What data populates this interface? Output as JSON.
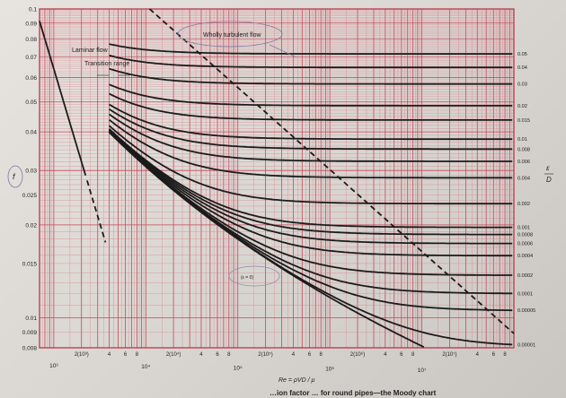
{
  "chart_data": {
    "type": "line",
    "xscale": "log",
    "yscale": "log",
    "xlim": [
      700,
      100000000
    ],
    "ylim": [
      0.008,
      0.1
    ],
    "grid": true,
    "xlabel": "Re = ρVD / μ",
    "ylabel": "f",
    "right_label_top": "ε",
    "right_label_bottom": "D",
    "annotations": {
      "laminar": "Laminar flow",
      "transition": "Transition range",
      "wholly_turbulent": "Wholly turbulent flow",
      "small_note": "(ε = 0)"
    },
    "y_ticks": [
      {
        "v": 0.1,
        "t": "0.1"
      },
      {
        "v": 0.09,
        "t": "0.09"
      },
      {
        "v": 0.08,
        "t": "0.08"
      },
      {
        "v": 0.07,
        "t": "0.07"
      },
      {
        "v": 0.06,
        "t": "0.06"
      },
      {
        "v": 0.05,
        "t": "0.05"
      },
      {
        "v": 0.04,
        "t": "0.04"
      },
      {
        "v": 0.03,
        "t": "0.03"
      },
      {
        "v": 0.025,
        "t": "0.025"
      },
      {
        "v": 0.02,
        "t": "0.02"
      },
      {
        "v": 0.015,
        "t": "0.015"
      },
      {
        "v": 0.01,
        "t": "0.01"
      },
      {
        "v": 0.009,
        "t": "0.009"
      },
      {
        "v": 0.008,
        "t": "0.008"
      }
    ],
    "x_ticks_small": [
      {
        "v": 2000,
        "t": "2(10³)"
      },
      {
        "v": 4000,
        "t": "4"
      },
      {
        "v": 6000,
        "t": "6"
      },
      {
        "v": 8000,
        "t": "8"
      },
      {
        "v": 20000,
        "t": "2(10⁴)"
      },
      {
        "v": 40000,
        "t": "4"
      },
      {
        "v": 60000,
        "t": "6"
      },
      {
        "v": 80000,
        "t": "8"
      },
      {
        "v": 200000,
        "t": "2(10⁵)"
      },
      {
        "v": 400000,
        "t": "4"
      },
      {
        "v": 600000,
        "t": "6"
      },
      {
        "v": 800000,
        "t": "8"
      },
      {
        "v": 2000000,
        "t": "2(10⁶)"
      },
      {
        "v": 4000000,
        "t": "4"
      },
      {
        "v": 6000000,
        "t": "6"
      },
      {
        "v": 8000000,
        "t": "8"
      },
      {
        "v": 20000000,
        "t": "2(10⁷)"
      },
      {
        "v": 40000000,
        "t": "4"
      },
      {
        "v": 60000000,
        "t": "6"
      },
      {
        "v": 80000000,
        "t": "8"
      }
    ],
    "x_ticks_major": [
      {
        "v": 1000,
        "t": "10³"
      },
      {
        "v": 10000,
        "t": "10⁴"
      },
      {
        "v": 100000,
        "t": "10⁵"
      },
      {
        "v": 1000000,
        "t": "10⁶"
      },
      {
        "v": 10000000,
        "t": "10⁷"
      }
    ],
    "roughness": [
      {
        "v": 0.05,
        "t": "0.05"
      },
      {
        "v": 0.04,
        "t": "0.04"
      },
      {
        "v": 0.03,
        "t": "0.03"
      },
      {
        "v": 0.02,
        "t": "0.02"
      },
      {
        "v": 0.015,
        "t": "0.015"
      },
      {
        "v": 0.01,
        "t": "0.01"
      },
      {
        "v": 0.008,
        "t": "0.008"
      },
      {
        "v": 0.006,
        "t": "0.006"
      },
      {
        "v": 0.004,
        "t": "0.004"
      },
      {
        "v": 0.002,
        "t": "0.002"
      },
      {
        "v": 0.001,
        "t": "0.001"
      },
      {
        "v": 0.0008,
        "t": "0.0008"
      },
      {
        "v": 0.0006,
        "t": "0.0006"
      },
      {
        "v": 0.0004,
        "t": "0.0004"
      },
      {
        "v": 0.0002,
        "t": "0.0002"
      },
      {
        "v": 0.0001,
        "t": "0.0001"
      },
      {
        "v": 5e-05,
        "t": "0.00005"
      },
      {
        "v": 1e-05,
        "t": "0.00001"
      }
    ],
    "caption_fragment": "…ion factor … for round pipes—the Moody chart"
  }
}
